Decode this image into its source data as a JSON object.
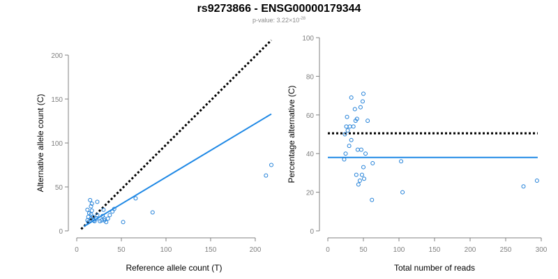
{
  "figure": {
    "title": "rs9273866 - ENSG00000179344",
    "pvalue_prefix": "p-value: 3.22×10",
    "pvalue_exponent": "-28"
  },
  "colors": {
    "points": "#1f7fd8",
    "fit_line": "#1e88e5",
    "reference_line": "#000000",
    "axis": "#808080",
    "tick_text": "#808080",
    "label_text": "#000000"
  },
  "chart_data": [
    {
      "type": "scatter",
      "xlabel": "Reference allele count (T)",
      "ylabel": "Alternative allele count (C)",
      "xlim": [
        0,
        218
      ],
      "ylim": [
        0,
        200
      ],
      "xticks": [
        0,
        50,
        100,
        150,
        200
      ],
      "yticks": [
        0,
        50,
        100,
        150,
        200
      ],
      "grid": false,
      "points": [
        [
          12,
          12
        ],
        [
          13,
          10
        ],
        [
          13,
          16
        ],
        [
          14,
          20
        ],
        [
          12,
          24
        ],
        [
          15,
          35
        ],
        [
          16,
          28
        ],
        [
          17,
          31
        ],
        [
          17,
          23
        ],
        [
          16,
          14
        ],
        [
          16,
          19
        ],
        [
          18,
          16
        ],
        [
          19,
          12
        ],
        [
          20,
          11
        ],
        [
          22,
          14
        ],
        [
          23,
          18
        ],
        [
          23,
          33
        ],
        [
          26,
          11
        ],
        [
          28,
          12
        ],
        [
          29,
          17
        ],
        [
          30,
          24
        ],
        [
          31,
          14
        ],
        [
          31,
          12
        ],
        [
          33,
          10
        ],
        [
          35,
          14
        ],
        [
          37,
          18
        ],
        [
          40,
          22
        ],
        [
          42,
          25
        ],
        [
          52,
          10
        ],
        [
          66,
          37
        ],
        [
          85,
          21
        ],
        [
          212,
          63
        ],
        [
          218,
          75
        ]
      ],
      "lines": [
        {
          "style": "dotted",
          "color": "#000000",
          "x": [
            5,
            218
          ],
          "y": [
            2,
            217
          ]
        },
        {
          "style": "solid",
          "color": "#1e88e5",
          "x": [
            8,
            218
          ],
          "y": [
            5,
            133
          ]
        }
      ]
    },
    {
      "type": "scatter",
      "xlabel": "Total number of reads",
      "ylabel": "Percentage alternative (C)",
      "xlim": [
        0,
        300
      ],
      "ylim": [
        0,
        100
      ],
      "xticks": [
        0,
        50,
        100,
        150,
        200,
        250,
        300
      ],
      "yticks": [
        0,
        20,
        40,
        60,
        80,
        100
      ],
      "grid": false,
      "points": [
        [
          24,
          50
        ],
        [
          25,
          40
        ],
        [
          26,
          54
        ],
        [
          27,
          59
        ],
        [
          28,
          52
        ],
        [
          30,
          44
        ],
        [
          31,
          54
        ],
        [
          33,
          47
        ],
        [
          33,
          69
        ],
        [
          36,
          54
        ],
        [
          38,
          63
        ],
        [
          39,
          57
        ],
        [
          40,
          29
        ],
        [
          41,
          58
        ],
        [
          42,
          42
        ],
        [
          43,
          24
        ],
        [
          45,
          26
        ],
        [
          46,
          64
        ],
        [
          47,
          42
        ],
        [
          48,
          29
        ],
        [
          49,
          67
        ],
        [
          50,
          71
        ],
        [
          50,
          33
        ],
        [
          51,
          27
        ],
        [
          53,
          40
        ],
        [
          56,
          57
        ],
        [
          62,
          16
        ],
        [
          63,
          35
        ],
        [
          103,
          36
        ],
        [
          105,
          20
        ],
        [
          275,
          23
        ],
        [
          294,
          26
        ],
        [
          23,
          37
        ]
      ],
      "lines": [
        {
          "style": "dotted",
          "color": "#000000",
          "x": [
            0,
            295
          ],
          "y": [
            50.5,
            50.5
          ]
        },
        {
          "style": "solid",
          "color": "#1e88e5",
          "x": [
            0,
            295
          ],
          "y": [
            38,
            38
          ]
        }
      ]
    }
  ]
}
